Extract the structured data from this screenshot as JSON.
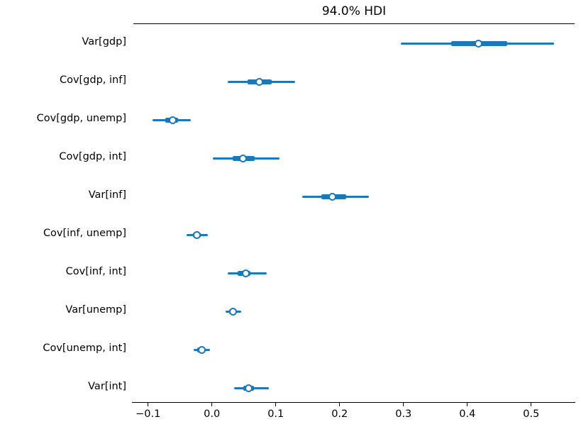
{
  "figure": {
    "background": "#ffffff",
    "text_color": "#000000"
  },
  "chart_data": {
    "type": "scatter",
    "subtype": "forest-plot-credible-intervals",
    "title": "94.0% HDI",
    "hdi_probability": "94.0%",
    "xlabel": "",
    "ylabel": "",
    "grid": false,
    "legend": false,
    "interval_color": "#1f77b4",
    "marker_face_color": "#ffffff",
    "axis_color": "#000000",
    "xlim": [
      -0.123,
      0.568
    ],
    "x_ticks": [
      -0.1,
      0.0,
      0.1,
      0.2,
      0.3,
      0.4,
      0.5
    ],
    "x_tick_labels": [
      "−0.1",
      "0.0",
      "0.1",
      "0.2",
      "0.3",
      "0.4",
      "0.5"
    ],
    "rows": [
      {
        "label": "Var[gdp]",
        "hdi_lower": 0.296,
        "quartile_lower": 0.375,
        "median": 0.418,
        "quartile_upper": 0.462,
        "hdi_upper": 0.536
      },
      {
        "label": "Cov[gdp, inf]",
        "hdi_lower": 0.025,
        "quartile_lower": 0.056,
        "median": 0.074,
        "quartile_upper": 0.094,
        "hdi_upper": 0.13
      },
      {
        "label": "Cov[gdp, unemp]",
        "hdi_lower": -0.093,
        "quartile_lower": -0.073,
        "median": -0.061,
        "quartile_upper": -0.053,
        "hdi_upper": -0.033
      },
      {
        "label": "Cov[gdp, int]",
        "hdi_lower": 0.001,
        "quartile_lower": 0.033,
        "median": 0.049,
        "quartile_upper": 0.067,
        "hdi_upper": 0.106
      },
      {
        "label": "Var[inf]",
        "hdi_lower": 0.141,
        "quartile_lower": 0.171,
        "median": 0.189,
        "quartile_upper": 0.21,
        "hdi_upper": 0.246
      },
      {
        "label": "Cov[inf, unemp]",
        "hdi_lower": -0.04,
        "quartile_lower": -0.03,
        "median": -0.024,
        "quartile_upper": -0.017,
        "hdi_upper": -0.006
      },
      {
        "label": "Cov[inf, int]",
        "hdi_lower": 0.025,
        "quartile_lower": 0.04,
        "median": 0.053,
        "quartile_upper": 0.06,
        "hdi_upper": 0.086
      },
      {
        "label": "Var[unemp]",
        "hdi_lower": 0.021,
        "quartile_lower": 0.027,
        "median": 0.033,
        "quartile_upper": 0.038,
        "hdi_upper": 0.046
      },
      {
        "label": "Cov[unemp, int]",
        "hdi_lower": -0.029,
        "quartile_lower": -0.023,
        "median": -0.016,
        "quartile_upper": -0.011,
        "hdi_upper": -0.003
      },
      {
        "label": "Var[int]",
        "hdi_lower": 0.035,
        "quartile_lower": 0.049,
        "median": 0.057,
        "quartile_upper": 0.066,
        "hdi_upper": 0.089
      }
    ]
  }
}
